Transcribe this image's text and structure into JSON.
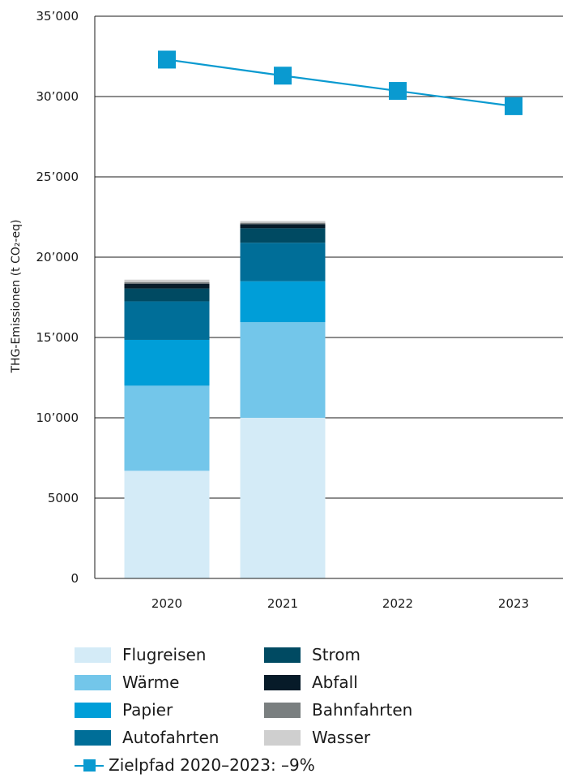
{
  "chart_data": {
    "type": "bar",
    "stacked": true,
    "categories": [
      "2020",
      "2021",
      "2022",
      "2023"
    ],
    "ylabel": "THG-Emissionen (t CO₂-eq)",
    "ylim": [
      0,
      35000
    ],
    "yticks": [
      0,
      5000,
      10000,
      15000,
      20000,
      25000,
      30000,
      35000
    ],
    "ytick_labels": [
      "0",
      "5000",
      "10’000",
      "15’000",
      "20’000",
      "25’000",
      "30’000",
      "35’000"
    ],
    "grid": true,
    "legend_position": "bottom",
    "series": [
      {
        "name": "Flugreisen",
        "color": "#d4ebf7",
        "values": [
          6700,
          10000,
          null,
          null
        ]
      },
      {
        "name": "Wärme",
        "color": "#73c6ea",
        "values": [
          5300,
          5950,
          null,
          null
        ]
      },
      {
        "name": "Papier",
        "color": "#009ed8",
        "values": [
          2850,
          2550,
          null,
          null
        ]
      },
      {
        "name": "Autofahrten",
        "color": "#006e98",
        "values": [
          2400,
          2400,
          null,
          null
        ]
      },
      {
        "name": "Strom",
        "color": "#004a62",
        "values": [
          800,
          900,
          null,
          null
        ]
      },
      {
        "name": "Abfall",
        "color": "#071b29",
        "values": [
          300,
          260,
          null,
          null
        ]
      },
      {
        "name": "Bahnfahrten",
        "color": "#7a7f80",
        "values": [
          100,
          80,
          null,
          null
        ]
      },
      {
        "name": "Wasser",
        "color": "#cfcfcf",
        "values": [
          150,
          110,
          null,
          null
        ]
      }
    ],
    "target_line": {
      "name": "Zielpfad 2020–2023: –9%",
      "color": "#0a9ad0",
      "values": [
        32300,
        31300,
        30350,
        29400
      ]
    }
  }
}
